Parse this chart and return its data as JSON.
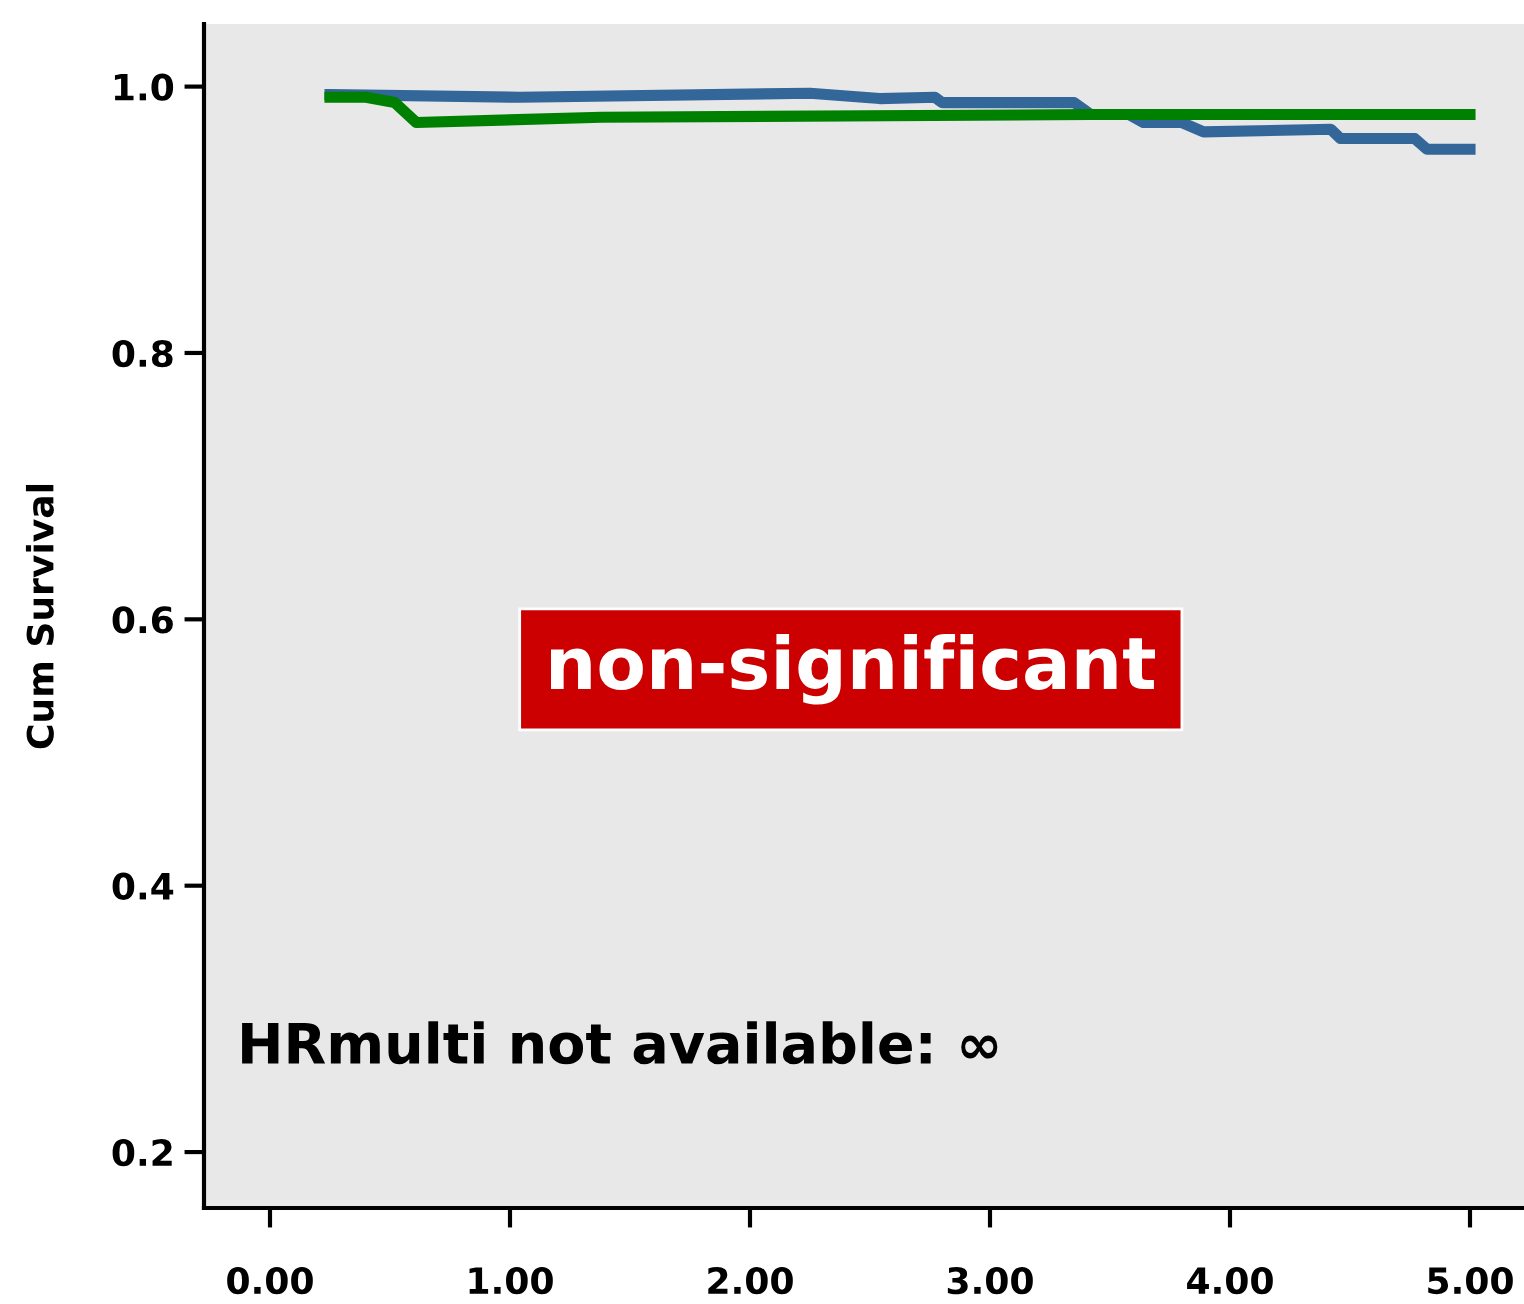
{
  "chart_data": {
    "type": "line",
    "ylabel": "Cum Survival",
    "xlim": [
      -0.275,
      5.225
    ],
    "ylim": [
      0.158,
      1.047
    ],
    "xticks": [
      {
        "value": 0,
        "label": "0.00"
      },
      {
        "value": 1,
        "label": "1.00"
      },
      {
        "value": 2,
        "label": "2.00"
      },
      {
        "value": 3,
        "label": "3.00"
      },
      {
        "value": 4,
        "label": "4.00"
      },
      {
        "value": 5,
        "label": "5.00"
      }
    ],
    "yticks": [
      {
        "value": 0.2,
        "label": "0.2"
      },
      {
        "value": 0.4,
        "label": "0.4"
      },
      {
        "value": 0.6,
        "label": "0.6"
      },
      {
        "value": 0.8,
        "label": "0.8"
      },
      {
        "value": 1.0,
        "label": "1.0"
      }
    ],
    "grid": false,
    "marker": "none",
    "line_style": "solid",
    "series": [
      {
        "color": "#336699",
        "x": [
          0.25,
          1.04,
          2.25,
          2.54,
          2.77,
          2.8,
          3.35,
          3.42,
          3.58,
          3.64,
          3.8,
          3.89,
          4.42,
          4.46,
          4.77,
          4.82,
          5.0
        ],
        "values": [
          0.994,
          0.992,
          0.995,
          0.991,
          0.992,
          0.988,
          0.988,
          0.979,
          0.979,
          0.973,
          0.973,
          0.966,
          0.968,
          0.961,
          0.961,
          0.953,
          0.953
        ]
      },
      {
        "color": "#008000",
        "x": [
          0.25,
          0.4,
          0.52,
          0.61,
          1.38,
          3.42,
          5.0
        ],
        "values": [
          0.992,
          0.992,
          0.988,
          0.973,
          0.977,
          0.979,
          0.979
        ]
      }
    ],
    "annotations": [
      "non-significant",
      "HRmulti not available: ∞"
    ]
  }
}
